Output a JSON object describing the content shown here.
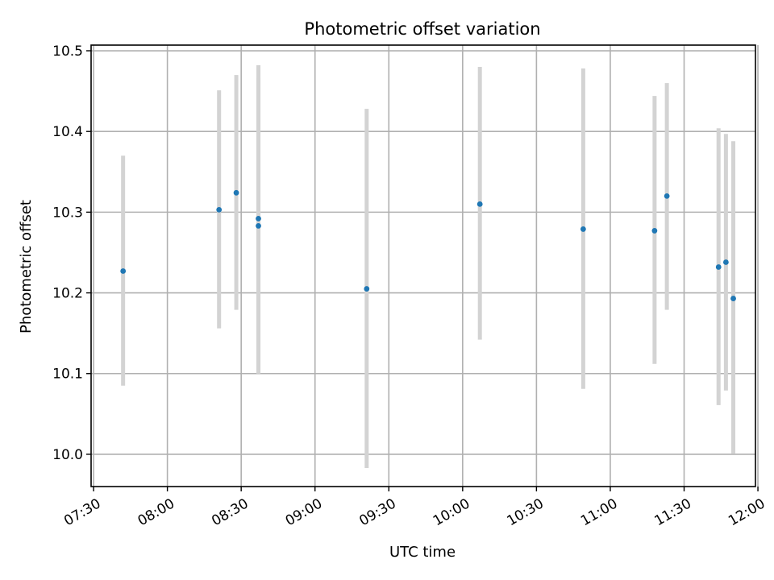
{
  "chart_data": {
    "type": "scatter",
    "title": "Photometric offset variation",
    "xlabel": "UTC time",
    "ylabel": "Photometric offset",
    "xlim": [
      "07:29",
      "11:59"
    ],
    "ylim": [
      9.96,
      10.507
    ],
    "grid": true,
    "x_ticks": [
      "07:30",
      "08:00",
      "08:30",
      "09:00",
      "09:30",
      "10:00",
      "10:30",
      "11:00",
      "11:30",
      "12:00"
    ],
    "y_ticks": [
      10.0,
      10.1,
      10.2,
      10.3,
      10.4,
      10.5
    ],
    "y_tick_labels": [
      "10.0",
      "10.1",
      "10.2",
      "10.3",
      "10.4",
      "10.5"
    ],
    "colors": {
      "points": "#1f77b4",
      "errorbars": "#d3d3d3",
      "grid": "#b0b0b0"
    },
    "points": [
      {
        "x": "07:42",
        "y": 10.227,
        "ylow": 10.085,
        "yhigh": 10.37
      },
      {
        "x": "08:21",
        "y": 10.303,
        "ylow": 10.156,
        "yhigh": 10.451
      },
      {
        "x": "08:28",
        "y": 10.324,
        "ylow": 10.179,
        "yhigh": 10.47
      },
      {
        "x": "08:37",
        "y": 10.283,
        "ylow": 10.1,
        "yhigh": 10.466
      },
      {
        "x": "08:37",
        "y": 10.292,
        "ylow": 10.104,
        "yhigh": 10.482
      },
      {
        "x": "09:21",
        "y": 10.205,
        "ylow": 9.983,
        "yhigh": 10.428
      },
      {
        "x": "10:07",
        "y": 10.31,
        "ylow": 10.142,
        "yhigh": 10.48
      },
      {
        "x": "10:49",
        "y": 10.279,
        "ylow": 10.081,
        "yhigh": 10.478
      },
      {
        "x": "11:18",
        "y": 10.277,
        "ylow": 10.112,
        "yhigh": 10.444
      },
      {
        "x": "11:23",
        "y": 10.32,
        "ylow": 10.179,
        "yhigh": 10.46
      },
      {
        "x": "11:44",
        "y": 10.232,
        "ylow": 10.061,
        "yhigh": 10.404
      },
      {
        "x": "11:47",
        "y": 10.238,
        "ylow": 10.079,
        "yhigh": 10.397
      },
      {
        "x": "11:50",
        "y": 10.193,
        "ylow": 10.001,
        "yhigh": 10.388
      }
    ]
  }
}
